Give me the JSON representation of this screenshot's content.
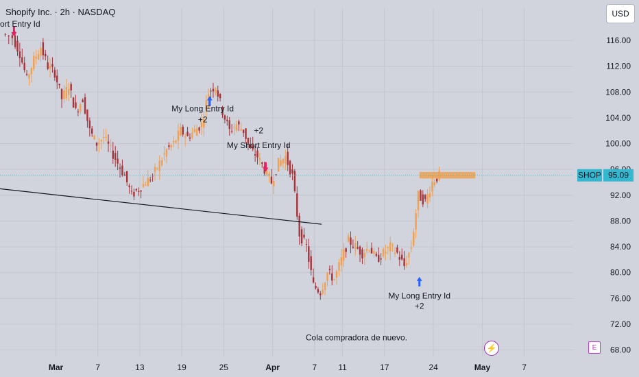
{
  "header": {
    "title": "Shopify Inc. · 2h · NASDAQ",
    "indicator": "ort Entry Id",
    "currency": "USD"
  },
  "colors": {
    "background": "#d1d4dc",
    "up": "#f0a050",
    "down": "#a8323a",
    "price_label_bg": "#33b8d0",
    "orange_zone": "#f0a050"
  },
  "icons": [
    "lightning-icon",
    "earnings-e-icon"
  ],
  "chart_data": {
    "type": "candlestick",
    "symbol": "SHOP",
    "last_price": "95.09",
    "y_ticks": [
      "116.00",
      "112.00",
      "108.00",
      "104.00",
      "100.00",
      "96.00",
      "92.00",
      "88.00",
      "84.00",
      "80.00",
      "76.00",
      "72.00",
      "68.00"
    ],
    "ylim": [
      67,
      121
    ],
    "x_ticks": [
      {
        "label": "Mar",
        "day": 1
      },
      {
        "label": "7",
        "day": 7
      },
      {
        "label": "13",
        "day": 13
      },
      {
        "label": "19",
        "day": 19
      },
      {
        "label": "25",
        "day": 25
      },
      {
        "label": "Apr",
        "day": 32
      },
      {
        "label": "7",
        "day": 38
      },
      {
        "label": "11",
        "day": 42
      },
      {
        "label": "17",
        "day": 48
      },
      {
        "label": "24",
        "day": 55
      },
      {
        "label": "May",
        "day": 62
      },
      {
        "label": "7",
        "day": 68
      }
    ],
    "xlim": [
      -7,
      75
    ],
    "path": [
      [
        -6.5,
        117
      ],
      [
        -5,
        116.5
      ],
      [
        -4,
        114
      ],
      [
        -3,
        110
      ],
      [
        -2,
        113
      ],
      [
        -1,
        115
      ],
      [
        0,
        112
      ],
      [
        1,
        111
      ],
      [
        2,
        107
      ],
      [
        3,
        109
      ],
      [
        4,
        105
      ],
      [
        5,
        107
      ],
      [
        6,
        102
      ],
      [
        7,
        100
      ],
      [
        8,
        101
      ],
      [
        9,
        99
      ],
      [
        10,
        97
      ],
      [
        11,
        95
      ],
      [
        12,
        92
      ],
      [
        13,
        93
      ],
      [
        14,
        94
      ],
      [
        15,
        95
      ],
      [
        16,
        97
      ],
      [
        17,
        99
      ],
      [
        18,
        100
      ],
      [
        19,
        102
      ],
      [
        20,
        101
      ],
      [
        21,
        102
      ],
      [
        22,
        103
      ],
      [
        23,
        108
      ],
      [
        24,
        109
      ],
      [
        25,
        105
      ],
      [
        26,
        102
      ],
      [
        27,
        103
      ],
      [
        28,
        102
      ],
      [
        29,
        99
      ],
      [
        30,
        98
      ],
      [
        31,
        96
      ],
      [
        32,
        94
      ],
      [
        33,
        97
      ],
      [
        34,
        98
      ],
      [
        35,
        95
      ],
      [
        36,
        86
      ],
      [
        37,
        84
      ],
      [
        38,
        78
      ],
      [
        39,
        77
      ],
      [
        40,
        80
      ],
      [
        41,
        79
      ],
      [
        42,
        82
      ],
      [
        43,
        85
      ],
      [
        44,
        84
      ],
      [
        45,
        83
      ],
      [
        46,
        84
      ],
      [
        47,
        82
      ],
      [
        48,
        83
      ],
      [
        49,
        84
      ],
      [
        50,
        83
      ],
      [
        51,
        81
      ],
      [
        52,
        84
      ],
      [
        53,
        92
      ],
      [
        54,
        91
      ],
      [
        55,
        94
      ],
      [
        56,
        95.09
      ]
    ],
    "annotations": [
      {
        "text": "My Long Entry Id",
        "day": 22,
        "price": 105
      },
      {
        "text": "+2",
        "day": 22,
        "price": 103.3
      },
      {
        "text": "My Short Entry Id",
        "day": 30,
        "price": 99.3
      },
      {
        "text": "+2",
        "day": 30,
        "price": 101.6
      },
      {
        "text": "My Long Entry Id",
        "day": 53,
        "price": 76
      },
      {
        "text": "+2",
        "day": 53,
        "price": 74.4
      },
      {
        "text": "Cola compradora de nuevo.",
        "day": 44,
        "price": 69.5
      }
    ],
    "entry_markers": [
      {
        "type": "short",
        "day": -5,
        "price": 117.5
      },
      {
        "type": "long",
        "day": 23,
        "price": 106.5
      },
      {
        "type": "short",
        "day": 31,
        "price": 96.5
      },
      {
        "type": "long",
        "day": 53,
        "price": 78.5
      }
    ],
    "trendline": {
      "start": [
        -7,
        93
      ],
      "end": [
        39,
        87.5
      ]
    },
    "orange_zone": {
      "day_start": 53,
      "day_end": 61,
      "low": 94.6,
      "high": 95.6
    }
  }
}
